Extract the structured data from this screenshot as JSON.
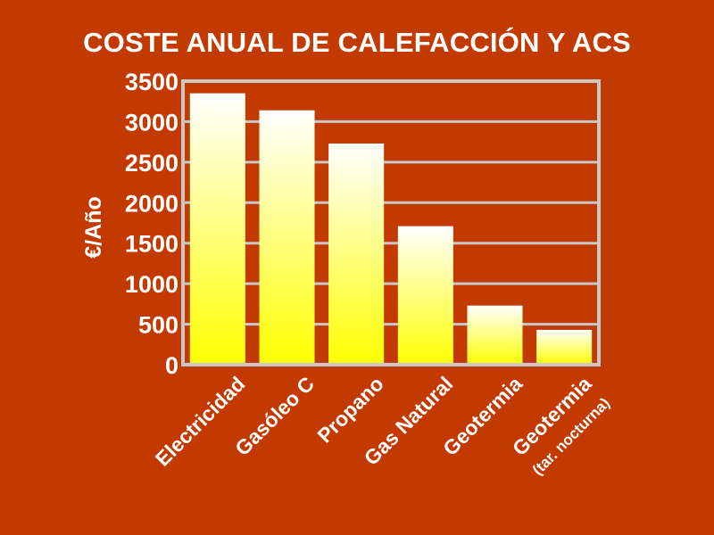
{
  "chart_data": {
    "type": "bar",
    "title": "COSTE ANUAL DE CALEFACCIÓN Y ACS",
    "ylabel": "€/Año",
    "xlabel": "",
    "ylim": [
      0,
      3500
    ],
    "yticks": [
      "0",
      "500",
      "1000",
      "1500",
      "2000",
      "2500",
      "3000",
      "3500"
    ],
    "grid": true,
    "categories": [
      "Electricidad",
      "Gasóleo C",
      "Propano",
      "Gas Natural",
      "Geotermia",
      "Geotermia (tar. nocturna)"
    ],
    "category_labels": [
      {
        "line1": "Electricidad",
        "line2": ""
      },
      {
        "line1": "Gasóleo C",
        "line2": ""
      },
      {
        "line1": "Propano",
        "line2": ""
      },
      {
        "line1": "Gas Natural",
        "line2": ""
      },
      {
        "line1": "Geotermia",
        "line2": ""
      },
      {
        "line1": "Geotermia",
        "line2": "(tar. nocturna)"
      }
    ],
    "values": [
      3350,
      3140,
      2730,
      1710,
      730,
      430
    ],
    "colors": {
      "background": "#c23a00",
      "bar_top": "#ffffff",
      "bar_bottom": "#ffff00",
      "grid": "#c8c8c8",
      "text": "#ffffff"
    }
  }
}
